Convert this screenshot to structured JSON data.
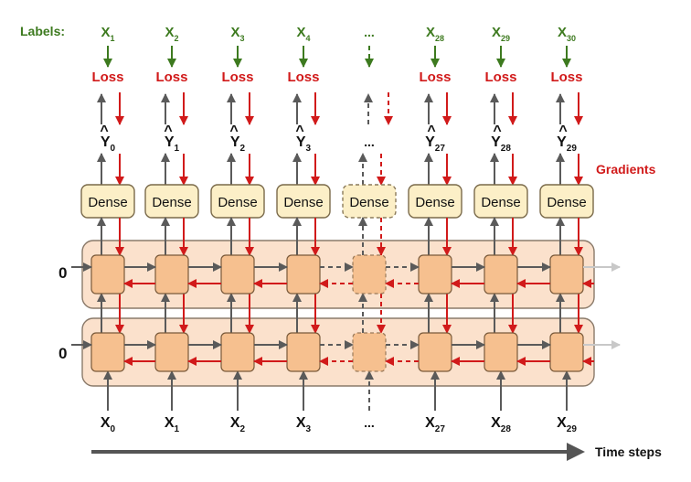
{
  "diagram": {
    "labels_heading": "Labels:",
    "gradients_label": "Gradients",
    "time_steps_label": "Time steps",
    "zero_label": "0",
    "ellipsis": "...",
    "dense_label": "Dense",
    "loss_label": "Loss",
    "columns": [
      {
        "label_base": "X",
        "label_sub": "1",
        "yhat_sub": "0",
        "input_sub": "0",
        "dashed": false
      },
      {
        "label_base": "X",
        "label_sub": "2",
        "yhat_sub": "1",
        "input_sub": "1",
        "dashed": false
      },
      {
        "label_base": "X",
        "label_sub": "3",
        "yhat_sub": "2",
        "input_sub": "2",
        "dashed": false
      },
      {
        "label_base": "X",
        "label_sub": "4",
        "yhat_sub": "3",
        "input_sub": "3",
        "dashed": false
      },
      {
        "label_base": "",
        "label_sub": "",
        "yhat_sub": "",
        "input_sub": "",
        "dashed": true
      },
      {
        "label_base": "X",
        "label_sub": "28",
        "yhat_sub": "27",
        "input_sub": "27",
        "dashed": false
      },
      {
        "label_base": "X",
        "label_sub": "29",
        "yhat_sub": "28",
        "input_sub": "28",
        "dashed": false
      },
      {
        "label_base": "X",
        "label_sub": "30",
        "yhat_sub": "29",
        "input_sub": "29",
        "dashed": false
      }
    ],
    "colors": {
      "green": "#3d7a1f",
      "red": "#d11a1a",
      "gray_arrow": "#5a5a5a",
      "dense_fill": "#fcefc7",
      "cell_fill": "#f6c08f",
      "layer_fill": "#fbe1cc",
      "layer_stroke": "#8a7a6a",
      "cell_stroke": "#7a5a3a",
      "fade": "#c8c8c8"
    }
  }
}
